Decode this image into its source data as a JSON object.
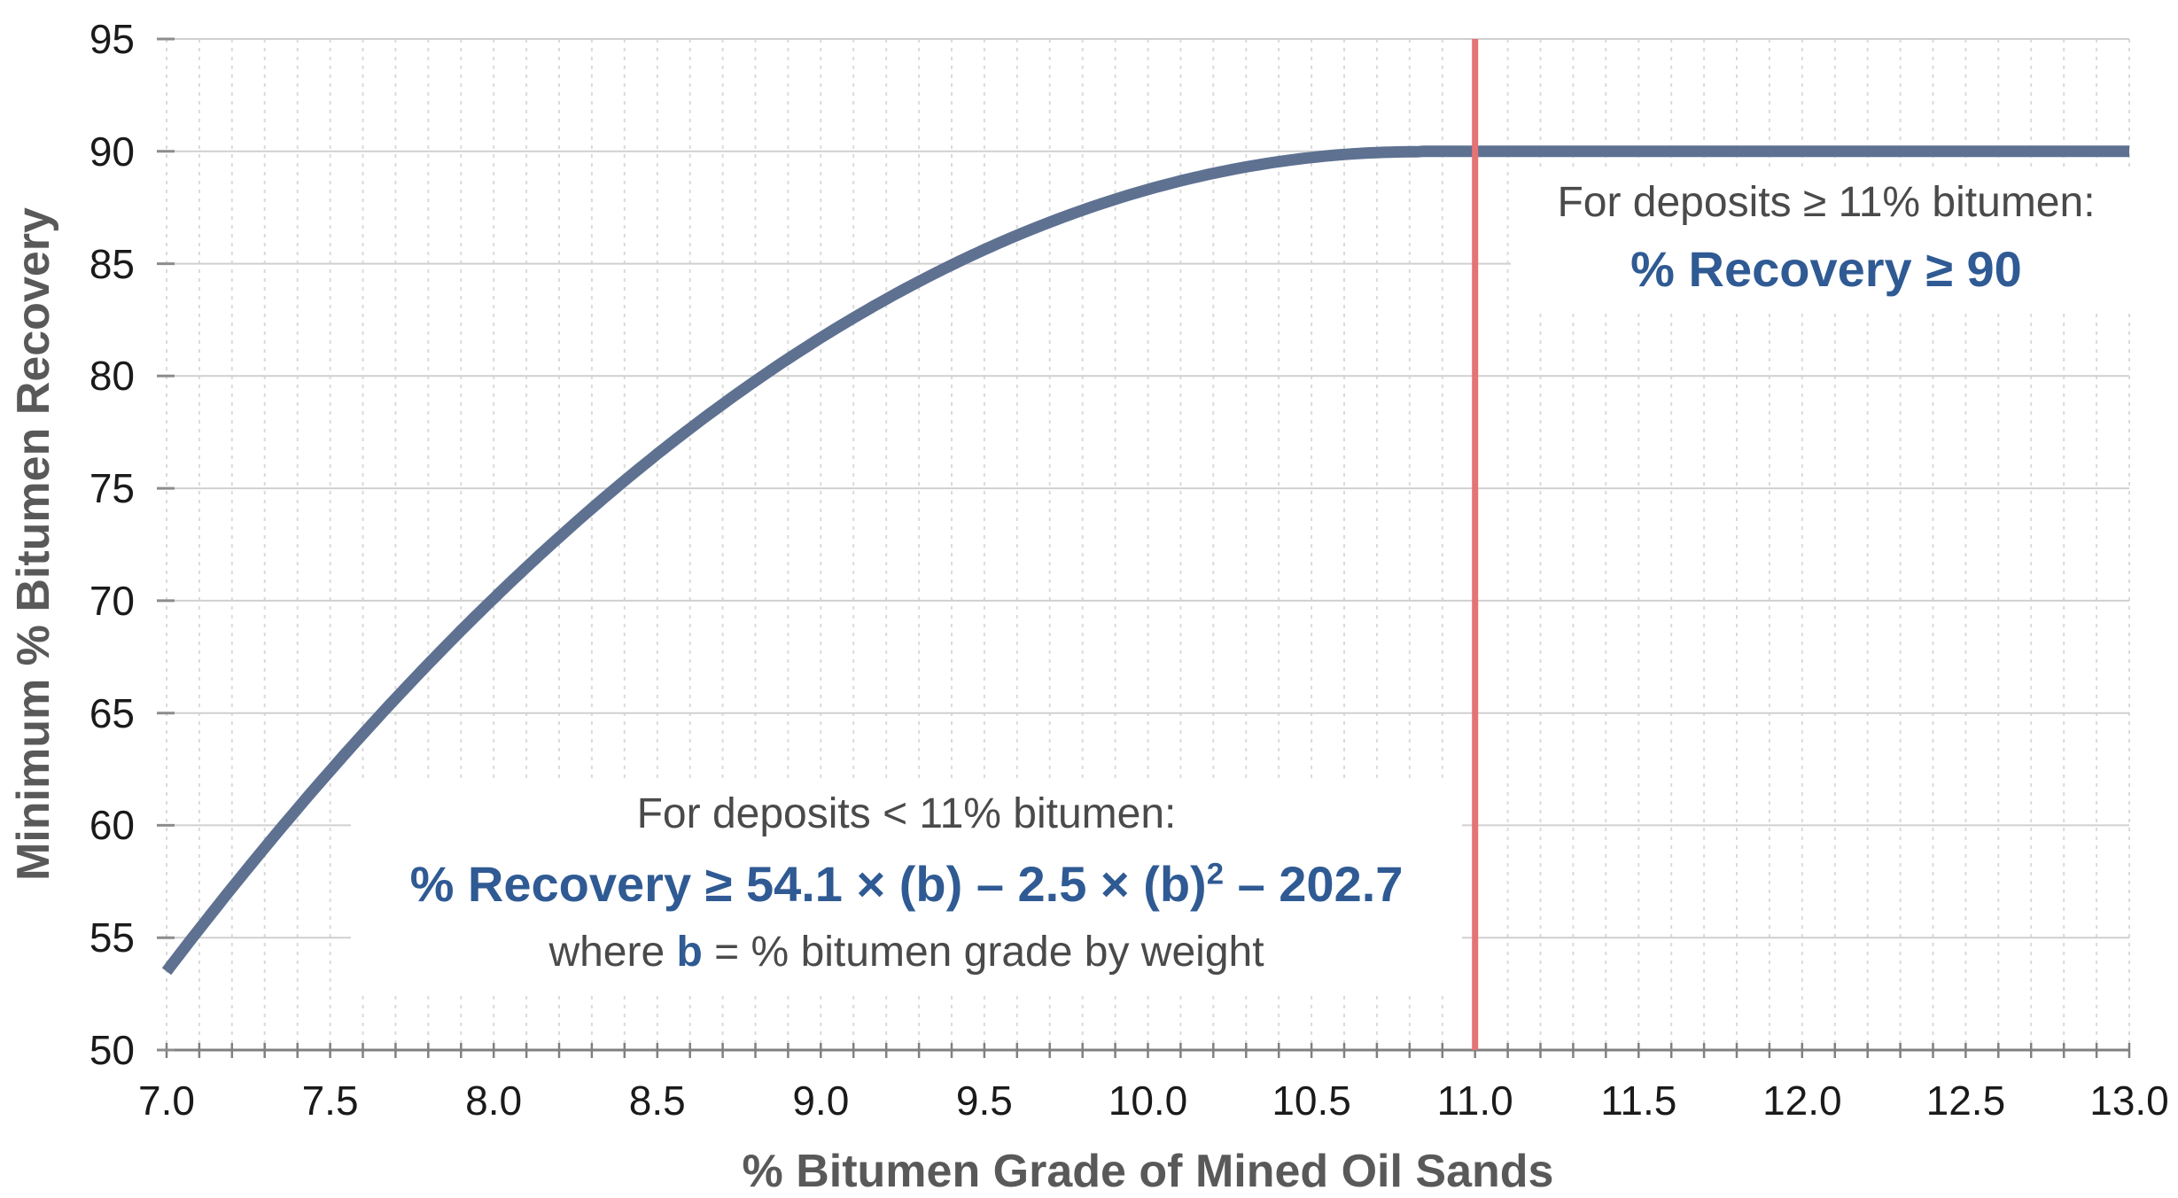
{
  "chart_data": {
    "type": "line",
    "title": "",
    "xlabel": "% Bitumen Grade of Mined Oil Sands",
    "ylabel": "Minimum % Bitumen Recovery",
    "xlim": [
      7.0,
      13.0
    ],
    "ylim": [
      50,
      95
    ],
    "x_ticks": [
      "7.0",
      "7.5",
      "8.0",
      "8.5",
      "9.0",
      "9.5",
      "10.0",
      "10.5",
      "11.0",
      "11.5",
      "12.0",
      "12.5",
      "13.0"
    ],
    "x_minor_tick_step": 0.1,
    "y_ticks": [
      "50",
      "55",
      "60",
      "65",
      "70",
      "75",
      "80",
      "85",
      "90",
      "95"
    ],
    "grid": {
      "vertical": "dashed minor gridlines every 0.1",
      "horizontal": "solid gridlines every 5"
    },
    "legend": "none",
    "series": [
      {
        "name": "minimum-recovery-curve",
        "color": "#5e7191",
        "formula": "% Recovery = 54.1 × b − 2.5 × b² − 202.7 for b < 10.82, else 90",
        "params": {
          "linear": 54.1,
          "quad": -2.5,
          "intercept": -202.7,
          "cap": 90
        },
        "points": [
          [
            7.0,
            53.5
          ],
          [
            7.5,
            62.4
          ],
          [
            8.0,
            70.1
          ],
          [
            8.5,
            76.5
          ],
          [
            9.0,
            81.7
          ],
          [
            9.5,
            85.6
          ],
          [
            10.0,
            88.3
          ],
          [
            10.5,
            89.7
          ],
          [
            10.82,
            90.0
          ],
          [
            11.0,
            90.0
          ],
          [
            11.5,
            90.0
          ],
          [
            12.0,
            90.0
          ],
          [
            12.5,
            90.0
          ],
          [
            13.0,
            90.0
          ]
        ]
      }
    ],
    "reference_line": {
      "x": 11.0,
      "color": "#e57373",
      "orientation": "vertical"
    },
    "annotations": {
      "above_11": {
        "line1": "For deposits ≥ 11% bitumen:",
        "line2": "% Recovery ≥ 90"
      },
      "below_11": {
        "line1": "For deposits < 11% bitumen:",
        "formula_prefix": "% Recovery ≥ 54.1 × (b) – 2.5 × (b)",
        "formula_sup": "2",
        "formula_suffix": " – 202.7",
        "where_prefix": "where ",
        "where_b": "b",
        "where_suffix": " = % bitumen grade by weight"
      }
    },
    "colors": {
      "curve": "#5e7191",
      "reference_line": "#e57373",
      "rule_text": "#2f5a93",
      "condition_text": "#4a4a4a",
      "axis_title": "#595959",
      "tick_label": "#1a1a1a",
      "grid_major": "#d0d0d0",
      "grid_minor": "#dadada",
      "axis_line": "#808080"
    }
  }
}
